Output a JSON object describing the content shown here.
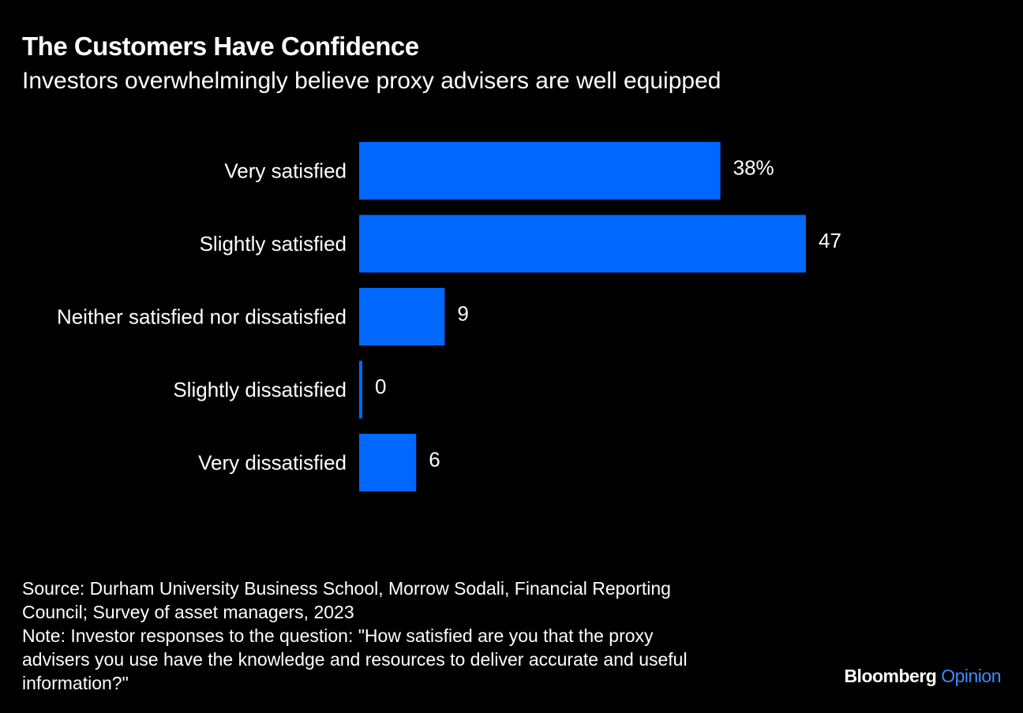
{
  "header": {
    "title": "The Customers Have Confidence",
    "subtitle": "Investors overwhelmingly believe proxy advisers are well equipped"
  },
  "chart_data": {
    "type": "bar",
    "orientation": "horizontal",
    "categories": [
      "Very satisfied",
      "Slightly satisfied",
      "Neither satisfied nor dissatisfied",
      "Slightly dissatisfied",
      "Very dissatisfied"
    ],
    "values": [
      38,
      47,
      9,
      0,
      6
    ],
    "value_labels": [
      "38%",
      "47",
      "9",
      "0",
      "6"
    ],
    "unit": "%",
    "title": "The Customers Have Confidence",
    "subtitle": "Investors overwhelmingly believe proxy advisers are well equipped",
    "xlim": [
      0,
      47
    ],
    "grid": false,
    "legend": "none",
    "bar_color": "#0068ff"
  },
  "footer": {
    "source_lines": [
      "Source: Durham University Business School, Morrow Sodali, Financial Reporting",
      "Council; Survey of asset managers, 2023"
    ],
    "note_lines": [
      "Note: Investor responses to the question: \"How satisfied are you that the proxy",
      "advisers you use have the knowledge and resources to deliver accurate and useful",
      "information?\""
    ]
  },
  "brand": {
    "name": "Bloomberg",
    "section": "Opinion",
    "section_color": "#3d8bff"
  },
  "colors": {
    "background": "#000000",
    "text": "#ffffff",
    "bar": "#0068ff"
  }
}
